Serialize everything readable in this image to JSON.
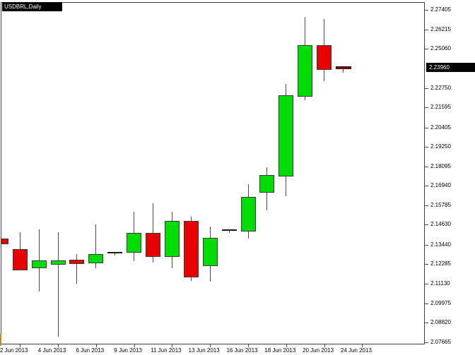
{
  "window": {
    "title": "USDBRL,Daily"
  },
  "colors": {
    "background": "#ffffff",
    "bull": "#00dd00",
    "bear": "#e80000",
    "candle_outline": "#3a3a3a",
    "wick": "#4a4a4a",
    "doji_dash": "#1a1a1a",
    "last_bar_dash": "#7a0000",
    "plot_border": "#3f3f3f",
    "axis_text": "#000000",
    "current_price_box_bg": "#000000",
    "current_price_box_text": "#ffffff"
  },
  "y_axis": {
    "current_price_label": "2.23960",
    "labels": [
      "2.27405",
      "2.26215",
      "2.25060",
      "2.22750",
      "2.21595",
      "2.20405",
      "2.19250",
      "2.18095",
      "2.16940",
      "2.15785",
      "2.14630",
      "2.13440",
      "2.12285",
      "2.11130",
      "2.09975",
      "2.08820",
      "2.07665"
    ]
  },
  "x_axis": {
    "labels": [
      "2 Jun 2013",
      "4 Jun 2013",
      "6 Jun 2013",
      "9 Jun 2013",
      "11 Jun 2013",
      "13 Jun 2013",
      "16 Jun 2013",
      "18 Jun 2013",
      "20 Jun 2013",
      "24 Jun 2013"
    ]
  },
  "chart_data": {
    "type": "candlestick",
    "title": "USDBRL,Daily",
    "symbol": "USDBRL",
    "timeframe": "Daily",
    "current_price": 2.2396,
    "ylim": [
      2.07665,
      2.27405
    ],
    "legend": "none",
    "grid": "off",
    "candles": [
      {
        "date": "31 May 2013",
        "open": 2.138,
        "high": 2.138,
        "low": 2.1349,
        "close": 2.1349,
        "dir": "down",
        "style": "body"
      },
      {
        "date": "2 Jun 2013",
        "open": 2.1317,
        "high": 2.1418,
        "low": 2.1191,
        "close": 2.1191,
        "dir": "down",
        "style": "body"
      },
      {
        "date": "3 Jun 2013",
        "open": 2.1205,
        "high": 2.1436,
        "low": 2.1066,
        "close": 2.125,
        "dir": "up",
        "style": "body"
      },
      {
        "date": "4 Jun 2013",
        "open": 2.1225,
        "high": 2.1418,
        "low": 2.0799,
        "close": 2.125,
        "dir": "up",
        "style": "body"
      },
      {
        "date": "5 Jun 2013",
        "open": 2.1254,
        "high": 2.1289,
        "low": 2.1114,
        "close": 2.1229,
        "dir": "down",
        "style": "body"
      },
      {
        "date": "6 Jun 2013",
        "open": 2.1233,
        "high": 2.1464,
        "low": 2.1205,
        "close": 2.1289,
        "dir": "up",
        "style": "body"
      },
      {
        "date": "7 Jun 2013",
        "open": 2.1299,
        "high": 2.1299,
        "low": 2.1282,
        "close": 2.1299,
        "dir": "flat",
        "style": "dash"
      },
      {
        "date": "9 Jun 2013",
        "open": 2.1296,
        "high": 2.154,
        "low": 2.1247,
        "close": 2.1415,
        "dir": "up",
        "style": "body"
      },
      {
        "date": "10 Jun 2013",
        "open": 2.1415,
        "high": 2.1589,
        "low": 2.124,
        "close": 2.1271,
        "dir": "down",
        "style": "body"
      },
      {
        "date": "11 Jun 2013",
        "open": 2.1271,
        "high": 2.154,
        "low": 2.1205,
        "close": 2.1485,
        "dir": "up",
        "style": "body"
      },
      {
        "date": "12 Jun 2013",
        "open": 2.1485,
        "high": 2.1512,
        "low": 2.1128,
        "close": 2.1149,
        "dir": "down",
        "style": "body"
      },
      {
        "date": "13 Jun 2013",
        "open": 2.1216,
        "high": 2.1454,
        "low": 2.1124,
        "close": 2.1384,
        "dir": "up",
        "style": "body"
      },
      {
        "date": "14 Jun 2013",
        "open": 2.1431,
        "high": 2.1431,
        "low": 2.1415,
        "close": 2.1431,
        "dir": "flat",
        "style": "dash"
      },
      {
        "date": "16 Jun 2013",
        "open": 2.1424,
        "high": 2.1704,
        "low": 2.138,
        "close": 2.1627,
        "dir": "up",
        "style": "body"
      },
      {
        "date": "17 Jun 2013",
        "open": 2.1655,
        "high": 2.1806,
        "low": 2.155,
        "close": 2.1757,
        "dir": "up",
        "style": "body"
      },
      {
        "date": "18 Jun 2013",
        "open": 2.175,
        "high": 2.2297,
        "low": 2.1631,
        "close": 2.2231,
        "dir": "up",
        "style": "body"
      },
      {
        "date": "19 Jun 2013",
        "open": 2.2224,
        "high": 2.2695,
        "low": 2.2203,
        "close": 2.2529,
        "dir": "up",
        "style": "body"
      },
      {
        "date": "20 Jun 2013",
        "open": 2.2528,
        "high": 2.2685,
        "low": 2.2315,
        "close": 2.2381,
        "dir": "down",
        "style": "body"
      },
      {
        "date": "21 Jun 2013",
        "open": 2.2396,
        "high": 2.2396,
        "low": 2.2364,
        "close": 2.2396,
        "dir": "flat",
        "style": "dash-last"
      }
    ]
  }
}
